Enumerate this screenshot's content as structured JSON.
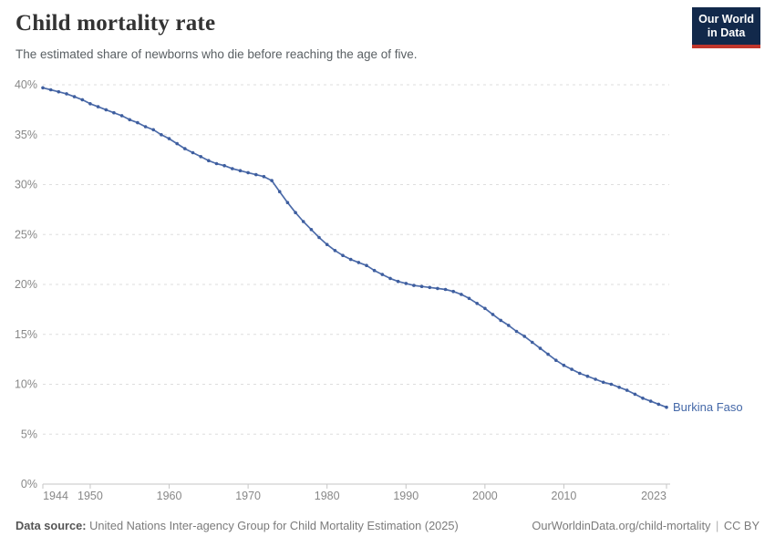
{
  "header": {
    "title": "Child mortality rate",
    "subtitle": "The estimated share of newborns who die before reaching the age of five.",
    "logo": {
      "line1": "Our World",
      "line2": "in Data",
      "background_color": "#12294B",
      "accent_color": "#C0362C"
    }
  },
  "footer": {
    "source_label": "Data source:",
    "source_text": "United Nations Inter-agency Group for Child Mortality Estimation (2025)",
    "link_text": "OurWorldinData.org/child-mortality",
    "separator": "|",
    "license": "CC BY"
  },
  "chart_data": {
    "type": "line",
    "title": "Child mortality rate",
    "xlabel": "",
    "ylabel": "",
    "grid": "horizontal-dashed",
    "legend_position": "end-of-line-label",
    "xlim": [
      1944,
      2023
    ],
    "ylim": [
      0,
      40
    ],
    "yticks": [
      0,
      5,
      10,
      15,
      20,
      25,
      30,
      35,
      40
    ],
    "ytick_suffix": "%",
    "xticks": [
      1944,
      1950,
      1960,
      1970,
      1980,
      1990,
      2000,
      2010,
      2023
    ],
    "series": [
      {
        "name": "Burkina Faso",
        "color": "#4C6BA9",
        "marker_color": "#3E5E9F",
        "label_color": "#4468A8",
        "x": [
          1944,
          1945,
          1946,
          1947,
          1948,
          1949,
          1950,
          1951,
          1952,
          1953,
          1954,
          1955,
          1956,
          1957,
          1958,
          1959,
          1960,
          1961,
          1962,
          1963,
          1964,
          1965,
          1966,
          1967,
          1968,
          1969,
          1970,
          1971,
          1972,
          1973,
          1974,
          1975,
          1976,
          1977,
          1978,
          1979,
          1980,
          1981,
          1982,
          1983,
          1984,
          1985,
          1986,
          1987,
          1988,
          1989,
          1990,
          1991,
          1992,
          1993,
          1994,
          1995,
          1996,
          1997,
          1998,
          1999,
          2000,
          2001,
          2002,
          2003,
          2004,
          2005,
          2006,
          2007,
          2008,
          2009,
          2010,
          2011,
          2012,
          2013,
          2014,
          2015,
          2016,
          2017,
          2018,
          2019,
          2020,
          2021,
          2022,
          2023
        ],
        "values": [
          39.7,
          39.5,
          39.3,
          39.1,
          38.8,
          38.5,
          38.1,
          37.8,
          37.5,
          37.2,
          36.9,
          36.5,
          36.2,
          35.8,
          35.5,
          35.0,
          34.6,
          34.1,
          33.6,
          33.2,
          32.8,
          32.4,
          32.1,
          31.9,
          31.6,
          31.4,
          31.2,
          31.0,
          30.8,
          30.4,
          29.3,
          28.2,
          27.2,
          26.3,
          25.5,
          24.7,
          24.0,
          23.4,
          22.9,
          22.5,
          22.2,
          21.9,
          21.4,
          21.0,
          20.6,
          20.3,
          20.1,
          19.9,
          19.8,
          19.7,
          19.6,
          19.5,
          19.3,
          19.0,
          18.6,
          18.1,
          17.6,
          17.0,
          16.4,
          15.9,
          15.3,
          14.8,
          14.2,
          13.6,
          13.0,
          12.4,
          11.9,
          11.5,
          11.1,
          10.8,
          10.5,
          10.2,
          10.0,
          9.7,
          9.4,
          9.0,
          8.6,
          8.3,
          8.0,
          7.7
        ]
      }
    ]
  }
}
